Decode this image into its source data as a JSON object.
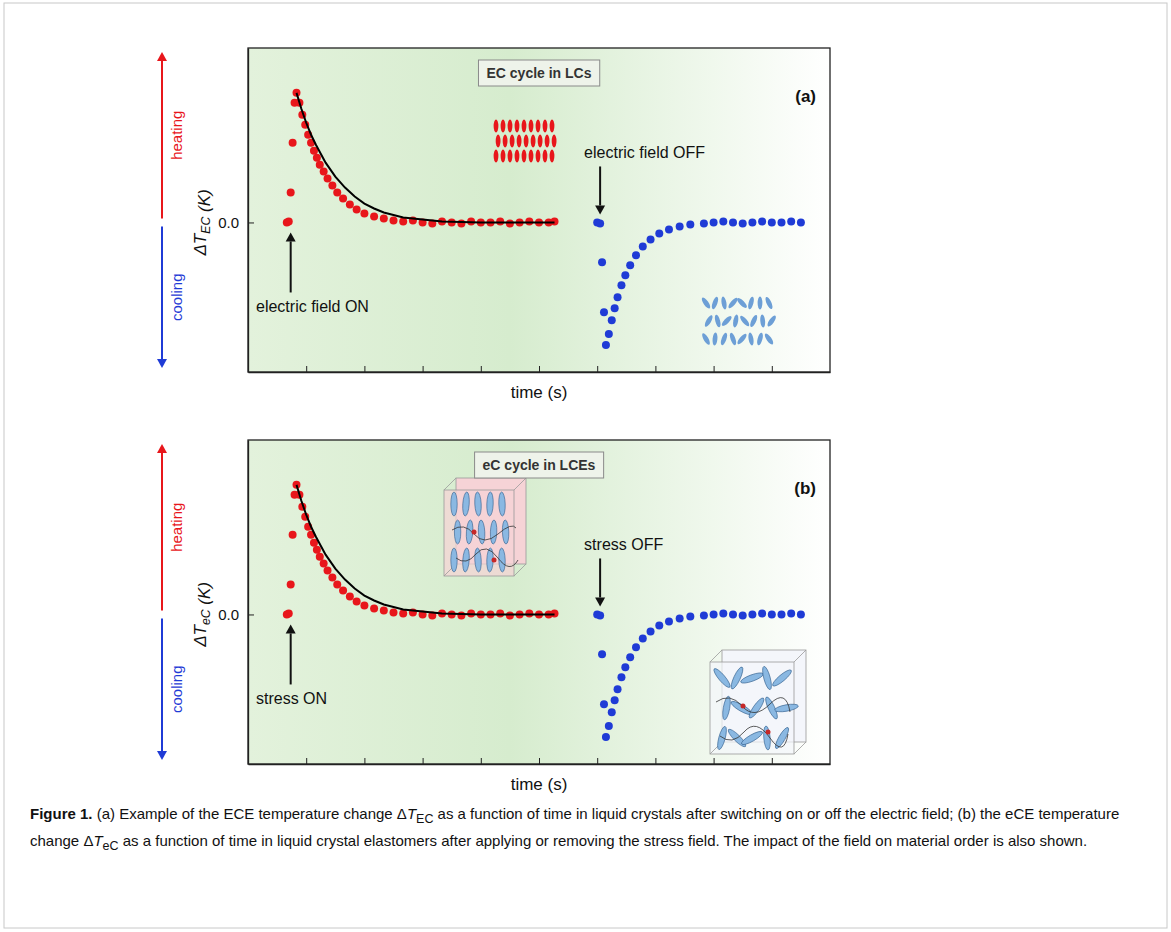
{
  "chart_data": [
    {
      "type": "scatter",
      "title": "EC cycle in LCs",
      "panel_label": "(a)",
      "xlabel": "time (s)",
      "ylabel": "ΔTEC (K)",
      "annotations": [
        "electric field ON",
        "electric field OFF",
        "heating",
        "cooling"
      ],
      "xlim": [
        0,
        60
      ],
      "ylim": [
        -1.5,
        1.75
      ],
      "xticks": [
        6,
        12,
        18,
        24,
        30,
        36,
        42,
        48,
        54
      ],
      "yticks": [
        {
          "value": 0,
          "label": "0.0"
        }
      ],
      "tick_labels": "y",
      "series": [
        {
          "type": "scatter",
          "color": "#e8161b",
          "marker": "circle",
          "x": [
            4.0,
            4.2,
            4.4,
            4.6,
            4.8,
            5.0,
            5.3,
            5.6,
            5.9,
            6.2,
            6.5,
            6.8,
            7.1,
            7.4,
            7.8,
            8.2,
            8.7,
            9.2,
            9.8,
            10.5,
            11.2,
            12.0,
            13.0,
            14.0,
            15.0,
            16.0,
            17.0,
            18.0,
            19.0,
            20.0,
            21.0,
            22.0,
            23.0,
            24.0,
            25.0,
            26.0,
            27.0,
            28.0,
            29.0,
            30.0,
            31.0,
            31.6
          ],
          "values": [
            0,
            0.01,
            0.3,
            0.8,
            1.2,
            1.3,
            1.2,
            1.08,
            0.98,
            0.88,
            0.8,
            0.72,
            0.65,
            0.58,
            0.51,
            0.44,
            0.37,
            0.3,
            0.24,
            0.18,
            0.13,
            0.09,
            0.06,
            0.04,
            0.02,
            0.01,
            0.02,
            0,
            -0.01,
            0.01,
            0,
            -0.01,
            0.01,
            0,
            0,
            0.01,
            -0.01,
            0,
            0.01,
            0,
            0,
            0.01
          ]
        },
        {
          "type": "line",
          "color": "#000000",
          "line_style": "solid",
          "x": [
            5.0,
            5.5,
            6.0,
            6.5,
            7.0,
            7.5,
            8.0,
            9.0,
            10.0,
            11.0,
            12.0,
            13.0,
            14.0,
            16.0,
            18.0,
            20.0,
            24.0,
            28.0,
            31.6
          ],
          "values": [
            1.3,
            1.14,
            1.0,
            0.88,
            0.78,
            0.69,
            0.6,
            0.46,
            0.35,
            0.26,
            0.19,
            0.14,
            0.1,
            0.05,
            0.03,
            0.01,
            0,
            0,
            0
          ]
        },
        {
          "type": "scatter",
          "color": "#1f3bd6",
          "marker": "circle",
          "x": [
            36.0,
            36.3,
            36.5,
            36.7,
            36.9,
            37.2,
            37.5,
            37.8,
            38.1,
            38.5,
            38.9,
            39.4,
            40.0,
            40.7,
            41.5,
            42.4,
            43.4,
            44.5,
            45.6,
            47.0,
            48.0,
            49.0,
            50.0,
            51.0,
            52.0,
            53.0,
            54.0,
            55.0,
            56.0,
            57.0
          ],
          "values": [
            0,
            -0.01,
            -0.4,
            -0.9,
            -1.23,
            -1.12,
            -0.98,
            -0.86,
            -0.75,
            -0.63,
            -0.53,
            -0.43,
            -0.33,
            -0.24,
            -0.17,
            -0.11,
            -0.07,
            -0.04,
            -0.02,
            -0.01,
            0,
            0.01,
            0,
            -0.01,
            0,
            0.01,
            0,
            0,
            0.01,
            0
          ]
        }
      ]
    },
    {
      "type": "scatter",
      "title": "eC cycle in LCEs",
      "panel_label": "(b)",
      "xlabel": "time (s)",
      "ylabel": "ΔTeC (K)",
      "annotations": [
        "stress ON",
        "stress OFF",
        "heating",
        "cooling"
      ],
      "xlim": [
        0,
        60
      ],
      "ylim": [
        -1.5,
        1.75
      ],
      "xticks": [
        6,
        12,
        18,
        24,
        30,
        36,
        42,
        48,
        54
      ],
      "yticks": [
        {
          "value": 0,
          "label": "0.0"
        }
      ],
      "tick_labels": "y",
      "series": [
        {
          "type": "scatter",
          "color": "#e8161b",
          "marker": "circle",
          "x": [
            4.0,
            4.2,
            4.4,
            4.6,
            4.8,
            5.0,
            5.3,
            5.6,
            5.9,
            6.2,
            6.5,
            6.8,
            7.1,
            7.4,
            7.8,
            8.2,
            8.7,
            9.2,
            9.8,
            10.5,
            11.2,
            12.0,
            13.0,
            14.0,
            15.0,
            16.0,
            17.0,
            18.0,
            19.0,
            20.0,
            21.0,
            22.0,
            23.0,
            24.0,
            25.0,
            26.0,
            27.0,
            28.0,
            29.0,
            30.0,
            31.0,
            31.6
          ],
          "values": [
            0,
            0.01,
            0.3,
            0.8,
            1.2,
            1.3,
            1.2,
            1.08,
            0.98,
            0.88,
            0.8,
            0.72,
            0.65,
            0.58,
            0.51,
            0.44,
            0.37,
            0.3,
            0.24,
            0.18,
            0.13,
            0.09,
            0.06,
            0.04,
            0.02,
            0.01,
            0.02,
            0,
            -0.01,
            0.01,
            0,
            -0.01,
            0.01,
            0,
            0,
            0.01,
            -0.01,
            0,
            0.01,
            0,
            0,
            0.01
          ]
        },
        {
          "type": "line",
          "color": "#000000",
          "line_style": "solid",
          "x": [
            5.0,
            5.5,
            6.0,
            6.5,
            7.0,
            7.5,
            8.0,
            9.0,
            10.0,
            11.0,
            12.0,
            13.0,
            14.0,
            16.0,
            18.0,
            20.0,
            24.0,
            28.0,
            31.6
          ],
          "values": [
            1.3,
            1.14,
            1.0,
            0.88,
            0.78,
            0.69,
            0.6,
            0.46,
            0.35,
            0.26,
            0.19,
            0.14,
            0.1,
            0.05,
            0.03,
            0.01,
            0,
            0,
            0
          ]
        },
        {
          "type": "scatter",
          "color": "#1f3bd6",
          "marker": "circle",
          "x": [
            36.0,
            36.3,
            36.5,
            36.7,
            36.9,
            37.2,
            37.5,
            37.8,
            38.1,
            38.5,
            38.9,
            39.4,
            40.0,
            40.7,
            41.5,
            42.4,
            43.4,
            44.5,
            45.6,
            47.0,
            48.0,
            49.0,
            50.0,
            51.0,
            52.0,
            53.0,
            54.0,
            55.0,
            56.0,
            57.0
          ],
          "values": [
            0,
            -0.01,
            -0.4,
            -0.9,
            -1.23,
            -1.12,
            -0.98,
            -0.86,
            -0.75,
            -0.63,
            -0.53,
            -0.43,
            -0.33,
            -0.24,
            -0.17,
            -0.11,
            -0.07,
            -0.04,
            -0.02,
            -0.01,
            0,
            0.01,
            0,
            -0.01,
            0,
            0.01,
            0,
            0,
            0.01,
            0
          ]
        }
      ]
    }
  ],
  "caption": {
    "label": "Figure 1.",
    "text": "(a) Example of the ECE temperature change ΔTEC as a function of time in liquid crystals after switching on or off the electric field; (b) the eCE temperature change ΔTeC as a function of time in liquid crystal elastomers after applying or removing the stress field. The impact of the field on material order is also shown."
  }
}
